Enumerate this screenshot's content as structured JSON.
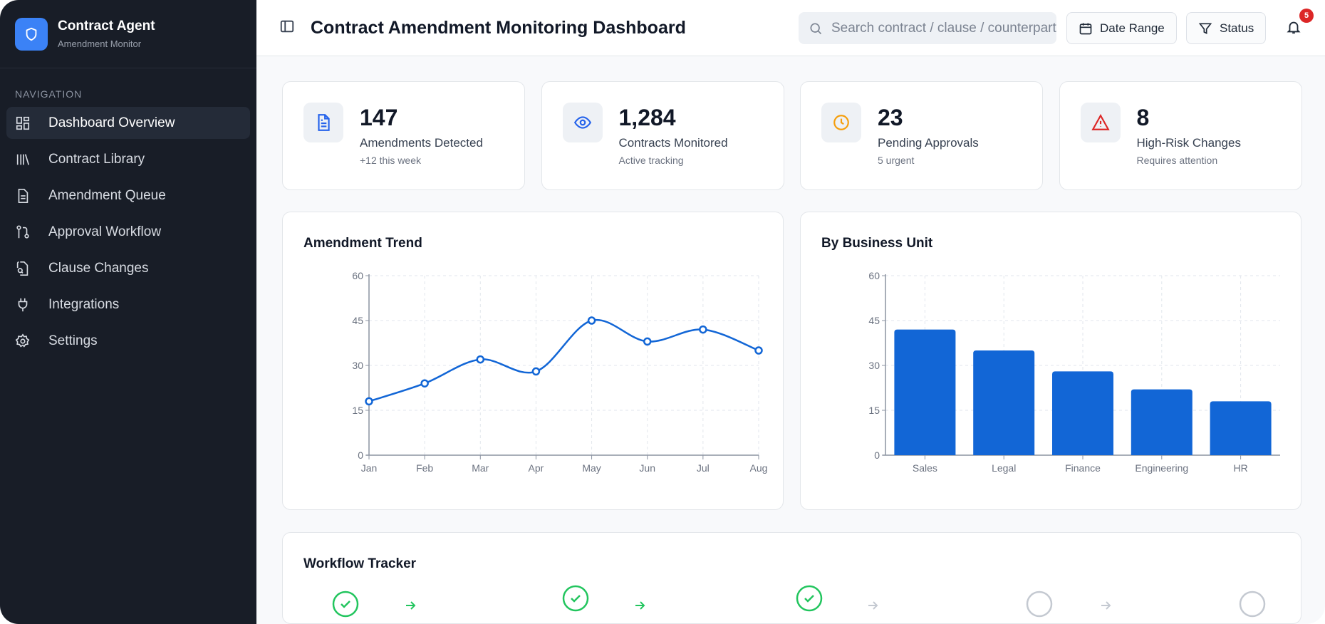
{
  "brand": {
    "name": "Contract Agent",
    "subtitle": "Amendment Monitor"
  },
  "sidebar": {
    "section_label": "NAVIGATION",
    "items": [
      {
        "label": "Dashboard Overview",
        "icon": "dashboard-icon",
        "active": true
      },
      {
        "label": "Contract Library",
        "icon": "library-icon"
      },
      {
        "label": "Amendment Queue",
        "icon": "file-text-icon"
      },
      {
        "label": "Approval Workflow",
        "icon": "git-pull-request-icon"
      },
      {
        "label": "Clause Changes",
        "icon": "file-search-icon"
      },
      {
        "label": "Integrations",
        "icon": "plug-icon"
      },
      {
        "label": "Settings",
        "icon": "gear-icon"
      }
    ]
  },
  "header": {
    "title": "Contract Amendment Monitoring Dashboard",
    "search_placeholder": "Search contract / clause / counterparty",
    "date_range": "Date Range",
    "status": "Status",
    "notifications": "5"
  },
  "stats": [
    {
      "value": "147",
      "label": "Amendments Detected",
      "sub": "+12 this week",
      "icon": "document-icon",
      "color": "#2563eb"
    },
    {
      "value": "1,284",
      "label": "Contracts Monitored",
      "sub": "Active tracking",
      "icon": "eye-icon",
      "color": "#2563eb"
    },
    {
      "value": "23",
      "label": "Pending Approvals",
      "sub": "5 urgent",
      "icon": "clock-icon",
      "color": "#f59e0b"
    },
    {
      "value": "8",
      "label": "High-Risk Changes",
      "sub": "Requires attention",
      "icon": "alert-triangle-icon",
      "color": "#dc2626"
    }
  ],
  "chart_data": [
    {
      "type": "line",
      "title": "Amendment Trend",
      "categories": [
        "Jan",
        "Feb",
        "Mar",
        "Apr",
        "May",
        "Jun",
        "Jul",
        "Aug"
      ],
      "values": [
        18,
        24,
        32,
        28,
        45,
        38,
        42,
        35
      ],
      "ylim": [
        0,
        60
      ],
      "yticks": [
        "0",
        "15",
        "30",
        "45",
        "60"
      ],
      "grid": true,
      "color": "#1266d6"
    },
    {
      "type": "bar",
      "title": "By Business Unit",
      "categories": [
        "Sales",
        "Legal",
        "Finance",
        "Engineering",
        "HR"
      ],
      "values": [
        42,
        35,
        28,
        22,
        18
      ],
      "ylim": [
        0,
        60
      ],
      "yticks": [
        "0",
        "15",
        "30",
        "45",
        "60"
      ],
      "grid": true,
      "color": "#1266d6"
    }
  ],
  "workflow": {
    "title": "Workflow Tracker",
    "steps": [
      {
        "status": "done"
      },
      {
        "status": "done"
      },
      {
        "status": "done"
      },
      {
        "status": "pending"
      },
      {
        "status": "pending"
      }
    ],
    "done_color": "#22c55e",
    "pending_color": "#c4c9d1"
  }
}
